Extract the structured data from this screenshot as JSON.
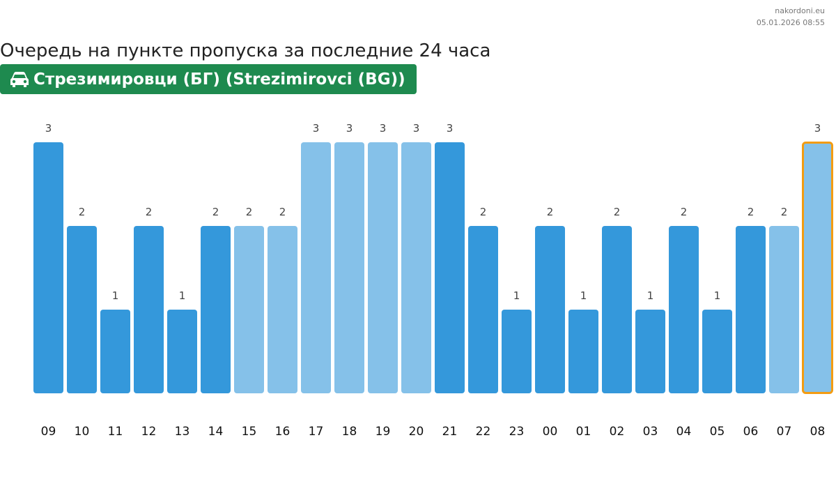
{
  "header": {
    "site": "nakordoni.eu",
    "timestamp": "05.01.2026 08:55"
  },
  "chart_data": {
    "type": "bar",
    "title": "Очередь на пункте пропуска за последние 24 часа",
    "subtitle": "Стрезимировци (БГ) (Strezimirovci (BG))",
    "categories": [
      "09",
      "10",
      "11",
      "12",
      "13",
      "14",
      "15",
      "16",
      "17",
      "18",
      "19",
      "20",
      "21",
      "22",
      "23",
      "00",
      "01",
      "02",
      "03",
      "04",
      "05",
      "06",
      "07",
      "08"
    ],
    "values": [
      3,
      2,
      1,
      2,
      1,
      2,
      2,
      2,
      3,
      3,
      3,
      3,
      3,
      2,
      1,
      2,
      1,
      2,
      1,
      2,
      1,
      2,
      2,
      3
    ],
    "colors": [
      "#3498db",
      "#3498db",
      "#3498db",
      "#3498db",
      "#3498db",
      "#3498db",
      "#85c1e9",
      "#85c1e9",
      "#85c1e9",
      "#85c1e9",
      "#85c1e9",
      "#85c1e9",
      "#3498db",
      "#3498db",
      "#3498db",
      "#3498db",
      "#3498db",
      "#3498db",
      "#3498db",
      "#3498db",
      "#3498db",
      "#3498db",
      "#85c1e9",
      "#85c1e9"
    ],
    "highlight": "08",
    "highlight_color": "#f39c12",
    "ylim": [
      0,
      3
    ],
    "grid": false
  }
}
